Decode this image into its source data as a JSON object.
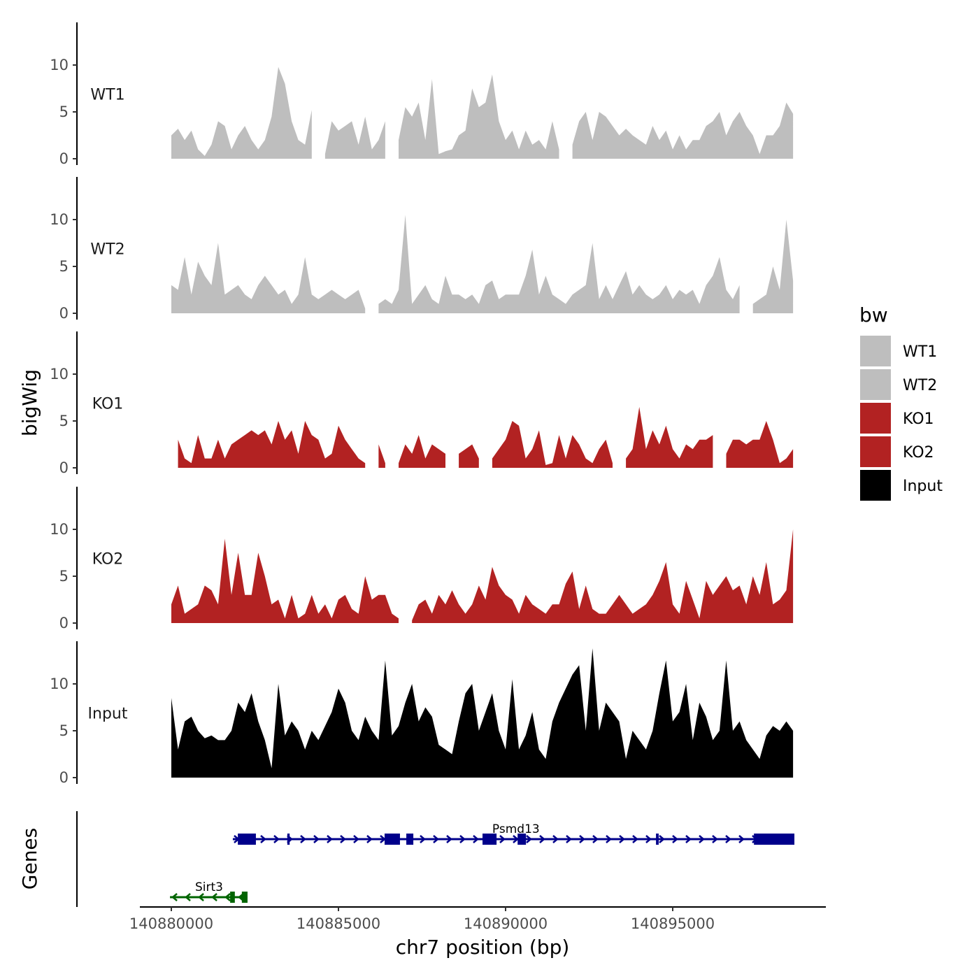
{
  "chart_data": {
    "type": "area",
    "xlabel": "chr7 position (bp)",
    "ylabel": "bigWig",
    "genes_label": "Genes",
    "x_ticks": [
      140880000,
      140885000,
      140890000,
      140895000
    ],
    "x_tick_labels": [
      "140880000",
      "140885000",
      "140890000",
      "140895000"
    ],
    "xlim": [
      140879000,
      140898900
    ],
    "y_ticks": [
      0,
      5,
      10
    ],
    "y_tick_labels": [
      "0",
      "5",
      "10"
    ],
    "ylim": [
      0,
      14.5
    ],
    "x_start": 140880000,
    "x_step": 200,
    "legend": {
      "title": "bw",
      "position": "right",
      "entries": [
        {
          "label": "WT1",
          "color": "#BEBEBE"
        },
        {
          "label": "WT2",
          "color": "#BEBEBE"
        },
        {
          "label": "KO1",
          "color": "#B22222"
        },
        {
          "label": "KO2",
          "color": "#B22222"
        },
        {
          "label": "Input",
          "color": "#000000"
        }
      ]
    },
    "series": [
      {
        "name": "WT1",
        "color": "#BEBEBE",
        "values": [
          2.5,
          3.2,
          2,
          3,
          1,
          0.3,
          1.5,
          4,
          3.5,
          1,
          2.5,
          3.5,
          2,
          1,
          2,
          4.5,
          9.8,
          8,
          4,
          2,
          1.5,
          5.2,
          null,
          0.5,
          4,
          3,
          3.5,
          4,
          1.5,
          4.5,
          1,
          2,
          4,
          null,
          2,
          5.5,
          4.5,
          6,
          2,
          8.5,
          0.5,
          0.8,
          1,
          2.5,
          3,
          7.5,
          5.5,
          6,
          9,
          4,
          2,
          3,
          1,
          3,
          1.5,
          2,
          1,
          4,
          1,
          null,
          1.5,
          4,
          5,
          2,
          5,
          4.5,
          3.5,
          2.5,
          3.2,
          2.5,
          2,
          1.5,
          3.5,
          2,
          3,
          1,
          2.5,
          1,
          2,
          2,
          3.5,
          4,
          5,
          2.5,
          4,
          5,
          3.5,
          2.5,
          0.5,
          2.5,
          2.5,
          3.5,
          6,
          4.8
        ]
      },
      {
        "name": "WT2",
        "color": "#BEBEBE",
        "values": [
          3,
          2.5,
          6,
          2,
          5.5,
          4,
          3,
          7.5,
          2,
          2.5,
          3,
          2,
          1.5,
          3,
          4,
          3,
          2,
          2.5,
          1,
          2,
          6,
          2,
          1.5,
          2,
          2.5,
          2,
          1.5,
          2,
          2.5,
          0.5,
          null,
          1,
          1.5,
          1,
          2.5,
          10.5,
          1,
          2,
          3,
          1.5,
          1,
          4,
          2,
          2,
          1.5,
          2,
          1,
          3,
          3.5,
          1.5,
          2,
          2,
          2,
          4,
          6.8,
          2,
          4,
          2,
          1.5,
          1,
          2,
          2.5,
          3,
          7.5,
          1.5,
          3,
          1.5,
          3,
          4.5,
          2,
          3,
          2,
          1.5,
          2,
          3,
          1.5,
          2.5,
          2,
          2.5,
          1,
          3,
          4,
          6,
          2.5,
          1.5,
          3,
          null,
          1,
          1.5,
          2,
          5,
          2.5,
          10,
          3.5
        ]
      },
      {
        "name": "KO1",
        "color": "#B22222",
        "values": [
          null,
          3,
          1,
          0.5,
          3.5,
          1,
          1,
          3,
          1,
          2.5,
          3,
          3.5,
          4,
          3.5,
          4,
          2.5,
          5,
          3,
          4,
          1.5,
          5,
          3.5,
          3,
          1,
          1.5,
          4.5,
          3,
          2,
          1,
          0.5,
          null,
          2.5,
          0.5,
          null,
          0.5,
          2.5,
          1.5,
          3.5,
          1,
          2.5,
          2,
          1.5,
          null,
          1.5,
          2,
          2.5,
          1,
          null,
          1,
          2,
          3,
          5,
          4.5,
          1,
          2,
          4,
          0.3,
          0.5,
          3.5,
          1,
          3.5,
          2.5,
          1,
          0.5,
          2,
          3,
          0.5,
          null,
          1,
          2,
          6.5,
          2,
          4,
          2.5,
          4.5,
          2,
          1,
          2.5,
          2,
          3,
          3,
          3.5,
          null,
          1.5,
          3,
          3,
          2.5,
          3,
          3,
          5,
          3,
          0.5,
          1,
          2
        ]
      },
      {
        "name": "KO2",
        "color": "#B22222",
        "values": [
          2,
          4,
          1,
          1.5,
          2,
          4,
          3.5,
          2,
          9,
          3,
          7.5,
          3,
          3,
          7.5,
          5,
          2,
          2.5,
          0.5,
          3,
          0.5,
          1,
          3,
          1,
          2,
          0.5,
          2.5,
          3,
          1.5,
          1,
          5,
          2.5,
          3,
          3,
          1,
          0.5,
          null,
          0.3,
          2,
          2.5,
          1,
          3,
          2,
          3.5,
          2,
          1,
          2,
          4,
          2.5,
          6,
          4,
          3,
          2.5,
          1,
          3,
          2,
          1.5,
          1,
          2,
          2,
          4.2,
          5.5,
          1.5,
          4,
          1.5,
          1,
          1,
          2,
          3,
          2,
          1,
          1.5,
          2,
          3,
          4.5,
          6.5,
          2,
          1,
          4.5,
          2.5,
          0.5,
          4.5,
          3,
          4,
          5,
          3.5,
          4,
          2,
          5,
          3,
          6.5,
          2,
          2.5,
          3.5,
          10
        ]
      },
      {
        "name": "Input",
        "color": "#000000",
        "values": [
          8.5,
          3,
          6,
          6.5,
          5,
          4.2,
          4.5,
          4,
          4,
          5,
          8,
          7,
          9,
          6,
          4,
          1,
          10,
          4.5,
          6,
          5,
          3,
          5,
          4,
          5.5,
          7,
          9.5,
          8,
          5,
          4,
          6.5,
          5,
          4,
          12.5,
          4.5,
          5.5,
          8,
          10,
          6,
          7.5,
          6.5,
          3.5,
          3,
          2.5,
          6,
          9,
          10,
          5,
          7,
          9,
          5,
          3,
          10.5,
          3,
          4.5,
          7,
          3,
          2,
          6,
          8,
          9.5,
          11,
          12,
          5,
          13.8,
          5,
          8,
          7,
          6,
          2,
          5,
          4,
          3,
          5,
          9,
          12.5,
          6,
          7,
          10,
          4,
          8,
          6.5,
          4,
          5,
          12.5,
          5,
          6,
          4,
          3,
          2,
          4.5,
          5.5,
          5,
          6,
          5
        ]
      }
    ],
    "genes": [
      {
        "name": "Psmd13",
        "strand": "+",
        "color": "#00008B",
        "start": 140881840,
        "end": 140898640,
        "exons": [
          [
            140881990,
            140882530
          ],
          [
            140883470,
            140883540
          ],
          [
            140886380,
            140886840
          ],
          [
            140887030,
            140887240
          ],
          [
            140889310,
            140889730
          ],
          [
            140890360,
            140890610
          ],
          [
            140894500,
            140894580
          ],
          [
            140897430,
            140898640
          ]
        ]
      },
      {
        "name": "Sirt3",
        "strand": "-",
        "color": "#006400",
        "start": 140879960,
        "end": 140882280,
        "exons": [
          [
            140881760,
            140881900
          ],
          [
            140882110,
            140882280
          ]
        ]
      }
    ]
  }
}
